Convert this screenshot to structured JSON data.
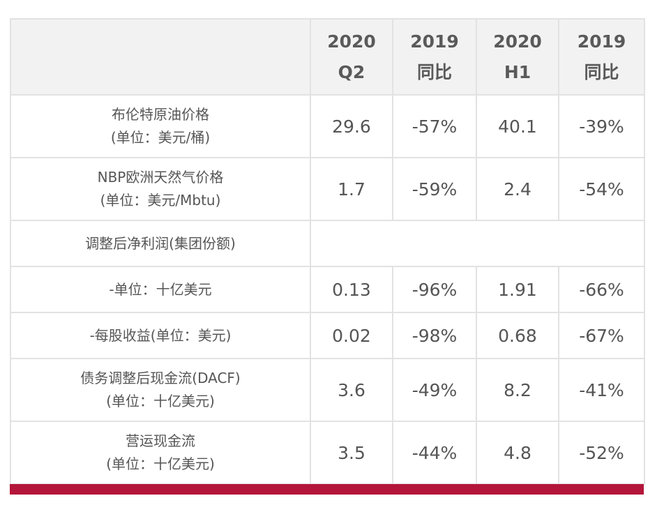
{
  "header": {
    "columns": [
      {
        "line1": "2020",
        "line2": "Q2"
      },
      {
        "line1": "2019",
        "line2": "同比"
      },
      {
        "line1": "2020",
        "line2": "H1"
      },
      {
        "line1": "2019",
        "line2": "同比"
      }
    ]
  },
  "rows": [
    {
      "label1": "布伦特原油价格",
      "label2": "(单位：美元/桶)",
      "q2": "29.6",
      "q2_yoy": "-57%",
      "h1": "40.1",
      "h1_yoy": "-39%"
    },
    {
      "label1": "NBP欧洲天然气价格",
      "label2": "(单位：美元/Mbtu)",
      "q2": "1.7",
      "q2_yoy": "-59%",
      "h1": "2.4",
      "h1_yoy": "-54%"
    },
    {
      "label1": "调整后净利润(集团份额)"
    },
    {
      "label1": "-单位：十亿美元",
      "q2": "0.13",
      "q2_yoy": "-96%",
      "h1": "1.91",
      "h1_yoy": "-66%"
    },
    {
      "label1": "-每股收益(单位：美元)",
      "q2": "0.02",
      "q2_yoy": "-98%",
      "h1": "0.68",
      "h1_yoy": "-67%"
    },
    {
      "label1": "债务调整后现金流(DACF)",
      "label2": "(单位：十亿美元)",
      "q2": "3.6",
      "q2_yoy": "-49%",
      "h1": "8.2",
      "h1_yoy": "-41%"
    },
    {
      "label1": "营运现金流",
      "label2": "(单位：十亿美元)",
      "q2": "3.5",
      "q2_yoy": "-44%",
      "h1": "4.8",
      "h1_yoy": "-52%"
    }
  ],
  "colors": {
    "header_bg": "#f2f2f2",
    "border": "#e2e2e2",
    "text": "#555555",
    "accent_bar": "#b4153a"
  }
}
